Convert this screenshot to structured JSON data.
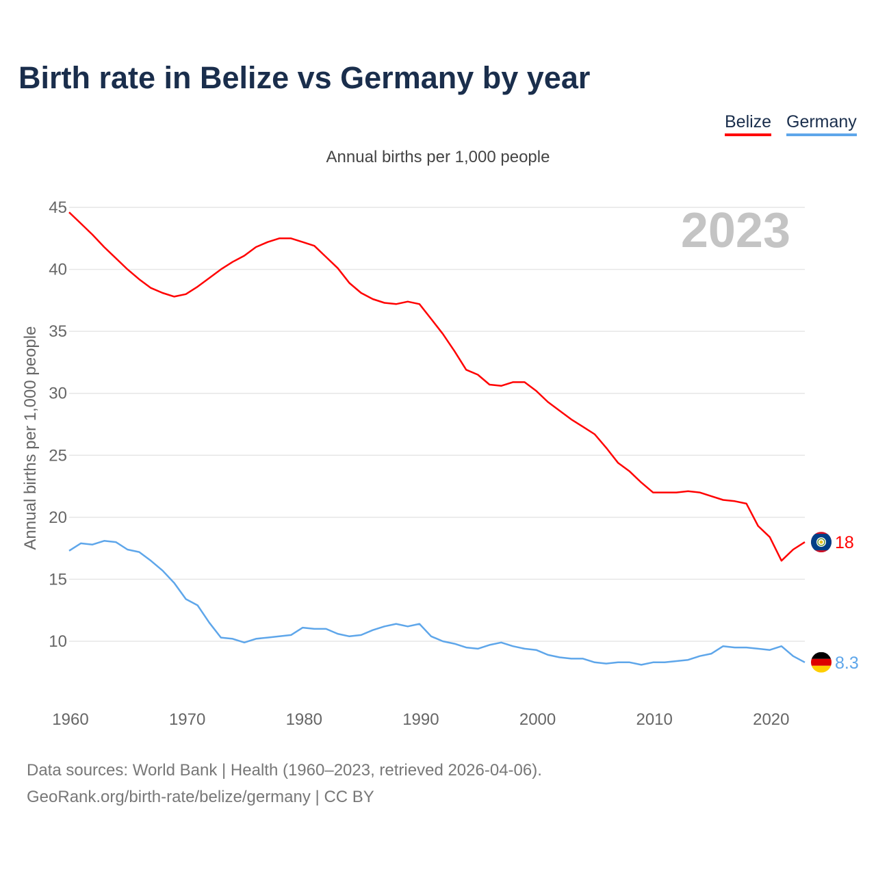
{
  "title": "Birth rate in Belize vs Germany by year",
  "legend": [
    {
      "label": "Belize",
      "color": "#ff0000"
    },
    {
      "label": "Germany",
      "color": "#5ea6ea"
    }
  ],
  "footer": {
    "line1": "Data sources: World Bank | Health (1960–2023, retrieved 2026-04-06).",
    "line2": "GeoRank.org/birth-rate/belize/germany | CC BY"
  },
  "chart_data": {
    "type": "line",
    "title": "Birth rate in Belize vs Germany by year",
    "subtitle": "Annual births per 1,000 people",
    "ylabel": "Annual births per 1,000 people",
    "xlabel": "",
    "year_watermark": "2023",
    "xlim": [
      1960,
      2023
    ],
    "ylim": [
      7.5,
      45
    ],
    "x_ticks": [
      1960,
      1970,
      1980,
      1990,
      2000,
      2010,
      2020
    ],
    "y_ticks": [
      10,
      15,
      20,
      25,
      30,
      35,
      40,
      45
    ],
    "grid": true,
    "legend_position": "top-right",
    "x_start": 1960,
    "series": [
      {
        "name": "Belize",
        "color": "#ff0000",
        "end_label": "18",
        "flag": "belize-flag",
        "values": [
          44.6,
          43.7,
          42.8,
          41.8,
          40.9,
          40.0,
          39.2,
          38.5,
          38.1,
          37.8,
          38.0,
          38.6,
          39.3,
          40.0,
          40.6,
          41.1,
          41.8,
          42.2,
          42.5,
          42.5,
          42.2,
          41.9,
          41.0,
          40.1,
          38.9,
          38.1,
          37.6,
          37.3,
          37.2,
          37.4,
          37.2,
          36.0,
          34.8,
          33.4,
          31.9,
          31.5,
          30.7,
          30.6,
          30.9,
          30.9,
          30.2,
          29.3,
          28.6,
          27.9,
          27.3,
          26.7,
          25.6,
          24.4,
          23.7,
          22.8,
          22.0,
          22.0,
          22.0,
          22.1,
          22.0,
          21.7,
          21.4,
          21.3,
          21.1,
          19.3,
          18.4,
          16.5,
          17.4,
          18.0
        ]
      },
      {
        "name": "Germany",
        "color": "#5ea6ea",
        "end_label": "8.3",
        "flag": "germany-flag",
        "values": [
          17.3,
          17.9,
          17.8,
          18.1,
          18.0,
          17.4,
          17.2,
          16.5,
          15.7,
          14.7,
          13.4,
          12.9,
          11.5,
          10.3,
          10.2,
          9.9,
          10.2,
          10.3,
          10.4,
          10.5,
          11.1,
          11.0,
          11.0,
          10.6,
          10.4,
          10.5,
          10.9,
          11.2,
          11.4,
          11.2,
          11.4,
          10.4,
          10.0,
          9.8,
          9.5,
          9.4,
          9.7,
          9.9,
          9.6,
          9.4,
          9.3,
          8.9,
          8.7,
          8.6,
          8.6,
          8.3,
          8.2,
          8.3,
          8.3,
          8.1,
          8.3,
          8.3,
          8.4,
          8.5,
          8.8,
          9.0,
          9.6,
          9.5,
          9.5,
          9.4,
          9.3,
          9.6,
          8.8,
          8.3
        ]
      }
    ]
  }
}
